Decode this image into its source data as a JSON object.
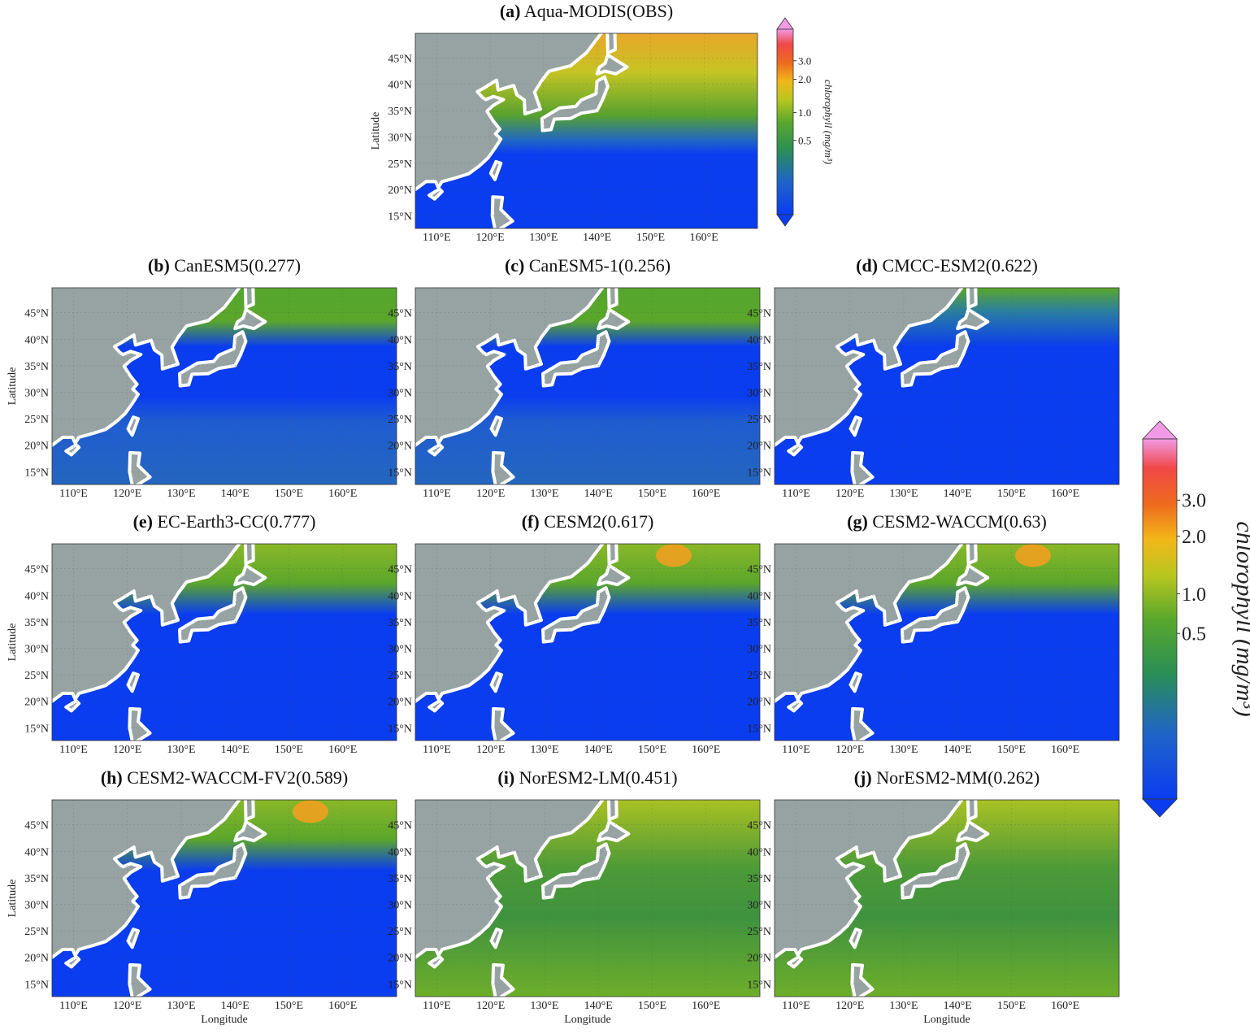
{
  "panels": [
    {
      "label": "(a)",
      "name": "Aqua-MODIS(OBS)"
    },
    {
      "label": "(b)",
      "name": "CanESM5(0.277)"
    },
    {
      "label": "(c)",
      "name": "CanESM5-1(0.256)"
    },
    {
      "label": "(d)",
      "name": "CMCC-ESM2(0.622)"
    },
    {
      "label": "(e)",
      "name": "EC-Earth3-CC(0.777)"
    },
    {
      "label": "(f)",
      "name": "CESM2(0.617)"
    },
    {
      "label": "(g)",
      "name": "CESM2-WACCM(0.63)"
    },
    {
      "label": "(h)",
      "name": "CESM2-WACCM-FV2(0.589)"
    },
    {
      "label": "(i)",
      "name": "NorESM2-LM(0.451)"
    },
    {
      "label": "(j)",
      "name": "NorESM2-MM(0.262)"
    }
  ],
  "axes": {
    "xlabel": "Longitude",
    "ylabel": "Latitude",
    "xlim": [
      106,
      170
    ],
    "ylim": [
      12.6,
      49.7
    ],
    "xticks": [
      {
        "value": 110,
        "label": "110°E"
      },
      {
        "value": 120,
        "label": "120°E"
      },
      {
        "value": 130,
        "label": "130°E"
      },
      {
        "value": 140,
        "label": "140°E"
      },
      {
        "value": 150,
        "label": "150°E"
      },
      {
        "value": 160,
        "label": "160°E"
      }
    ],
    "yticks": [
      {
        "value": 15,
        "label": "15°N"
      },
      {
        "value": 20,
        "label": "20°N"
      },
      {
        "value": 25,
        "label": "25°N"
      },
      {
        "value": 30,
        "label": "30°N"
      },
      {
        "value": 35,
        "label": "35°N"
      },
      {
        "value": 40,
        "label": "40°N"
      },
      {
        "value": 45,
        "label": "45°N"
      }
    ]
  },
  "colorbar": {
    "label": "chlorophyll (mg/m³)",
    "ticks": [
      "3.0",
      "2.0",
      "1.0",
      "0.5"
    ]
  }
}
